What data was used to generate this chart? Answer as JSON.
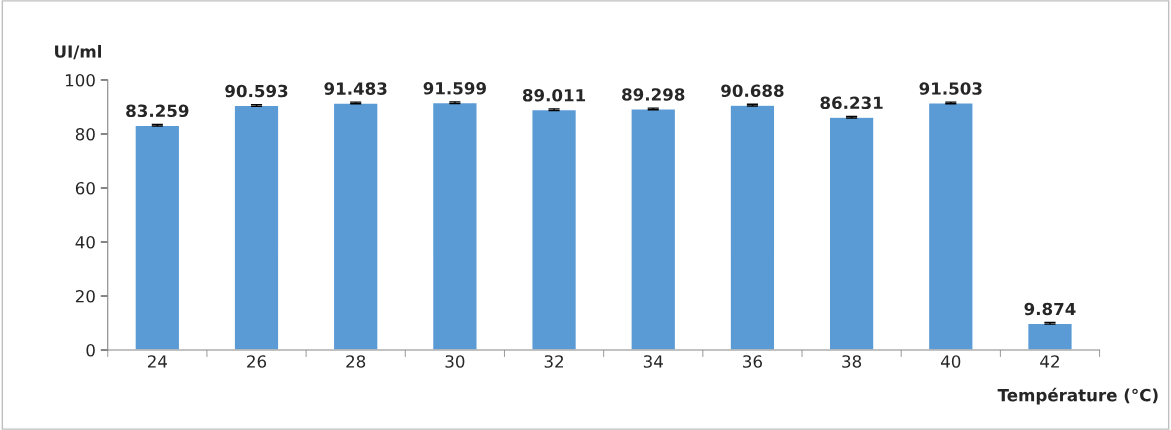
{
  "chart_data": {
    "type": "bar",
    "categories": [
      "24",
      "26",
      "28",
      "30",
      "32",
      "34",
      "36",
      "38",
      "40",
      "42"
    ],
    "values": [
      83.259,
      90.593,
      91.483,
      91.599,
      89.011,
      89.298,
      90.688,
      86.231,
      91.503,
      9.874
    ],
    "errors": [
      0.3,
      0.3,
      0.3,
      0.3,
      0.3,
      0.3,
      0.3,
      0.3,
      0.3,
      0.3
    ],
    "color": "#5b9bd5",
    "xlabel": "Température (°C)",
    "ylabel": "UI/ml",
    "ylim": [
      0,
      100
    ],
    "yticks": [
      0,
      20,
      40,
      60,
      80,
      100
    ],
    "data_labels": true,
    "grid": false
  }
}
